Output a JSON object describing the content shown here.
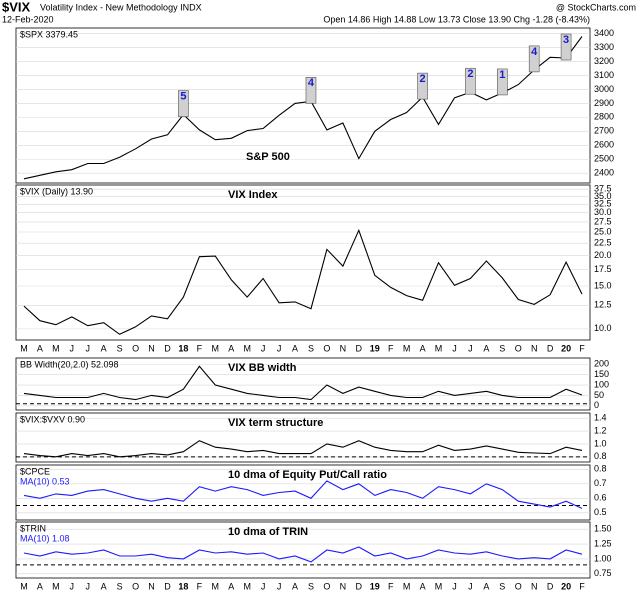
{
  "header": {
    "symbol": "$VIX",
    "name": "Volatility Index - New Methodology INDX",
    "date": "12-Feb-2020",
    "source": "@ StockCharts.com",
    "quote": "Open 14.86 High 14.88 Low 13.73 Close 13.90 Chg -1.28 (-8.43%)"
  },
  "categories": [
    "M",
    "A",
    "M",
    "J",
    "J",
    "A",
    "S",
    "O",
    "N",
    "D",
    "18",
    "F",
    "M",
    "A",
    "M",
    "J",
    "J",
    "A",
    "S",
    "O",
    "N",
    "D",
    "19",
    "F",
    "M",
    "A",
    "M",
    "J",
    "J",
    "A",
    "S",
    "O",
    "N",
    "D",
    "20",
    "F"
  ],
  "chart_data": [
    {
      "type": "line",
      "annotation": "S&P 500",
      "series": [
        {
          "name": "$SPX 3379.45",
          "color": "#000000",
          "values": [
            2360,
            2385,
            2410,
            2425,
            2470,
            2470,
            2515,
            2575,
            2645,
            2675,
            2820,
            2710,
            2640,
            2650,
            2705,
            2720,
            2815,
            2900,
            2915,
            2710,
            2760,
            2505,
            2700,
            2785,
            2835,
            2945,
            2750,
            2940,
            2980,
            2925,
            2975,
            3035,
            3140,
            3230,
            3225,
            3379.45
          ]
        }
      ],
      "peaks": [
        null,
        null,
        null,
        null,
        null,
        null,
        null,
        null,
        null,
        null,
        "5",
        null,
        null,
        null,
        null,
        null,
        null,
        null,
        "4",
        null,
        null,
        null,
        null,
        null,
        null,
        "2",
        null,
        null,
        "2",
        null,
        "1",
        null,
        "4",
        null,
        "3",
        null
      ],
      "ylim": [
        2330,
        3440
      ],
      "yticks": [
        2400,
        2500,
        2600,
        2700,
        2800,
        2900,
        3000,
        3100,
        3200,
        3300,
        3400
      ],
      "grid": true
    },
    {
      "type": "line",
      "annotation": "VIX Index",
      "log_scale": true,
      "show_x_axis": true,
      "series": [
        {
          "name": "$VIX (Daily) 13.90",
          "color": "#000000",
          "values": [
            12.4,
            10.8,
            10.4,
            11.2,
            10.3,
            10.6,
            9.5,
            10.2,
            11.3,
            11.0,
            13.5,
            19.8,
            19.9,
            15.9,
            13.5,
            16.1,
            12.8,
            12.9,
            12.1,
            21.2,
            18.1,
            25.4,
            16.6,
            14.8,
            13.7,
            13.1,
            18.7,
            15.1,
            16.1,
            19.0,
            16.2,
            13.2,
            12.6,
            13.8,
            18.8,
            13.9
          ]
        }
      ],
      "ylim": [
        9,
        39
      ],
      "yticks": [
        {
          "value": 10,
          "label": "10.0"
        },
        {
          "value": 12.5,
          "label": "12.5"
        },
        {
          "value": 15,
          "label": "15.0"
        },
        {
          "value": 17.5,
          "label": "17.5"
        },
        {
          "value": 20,
          "label": "20.0"
        },
        {
          "value": 22.5,
          "label": "22.5"
        },
        {
          "value": 25,
          "label": "25.0"
        },
        {
          "value": 27.5,
          "label": "27.5"
        },
        {
          "value": 30,
          "label": "30.0"
        },
        {
          "value": 32.5,
          "label": "32.5"
        },
        {
          "value": 35,
          "label": "35.0"
        },
        {
          "value": 37.5,
          "label": "37.5"
        }
      ],
      "grid": true
    },
    {
      "type": "line",
      "annotation": "VIX BB width",
      "series": [
        {
          "name": "BB Width(20,2.0) 52.098",
          "color": "#000000",
          "values": [
            60,
            50,
            40,
            40,
            40,
            60,
            40,
            30,
            50,
            40,
            80,
            190,
            100,
            80,
            60,
            50,
            40,
            40,
            30,
            100,
            60,
            90,
            70,
            50,
            40,
            40,
            70,
            50,
            60,
            70,
            50,
            40,
            40,
            40,
            80,
            52.098
          ]
        }
      ],
      "reference": 10,
      "ylim": [
        -20,
        230
      ],
      "yticks": [
        0,
        50,
        100,
        150,
        200
      ],
      "grid": true
    },
    {
      "type": "line",
      "annotation": "VIX term structure",
      "series": [
        {
          "name": "$VIX:$VXV 0.90",
          "color": "#000000",
          "values": [
            0.85,
            0.82,
            0.8,
            0.85,
            0.82,
            0.85,
            0.8,
            0.82,
            0.85,
            0.83,
            0.88,
            1.05,
            0.95,
            0.92,
            0.88,
            0.9,
            0.85,
            0.85,
            0.85,
            1.0,
            0.95,
            1.05,
            0.95,
            0.9,
            0.88,
            0.88,
            0.98,
            0.9,
            0.92,
            0.97,
            0.92,
            0.87,
            0.86,
            0.85,
            0.95,
            0.9
          ]
        }
      ],
      "reference": 0.8,
      "ylim": [
        0.72,
        1.48
      ],
      "yticks": [
        0.8,
        {
          "value": 1,
          "label": "1.0"
        },
        1.2,
        1.4
      ],
      "grid": true
    },
    {
      "type": "line",
      "annotation": "10 dma of Equity Put/Call ratio",
      "symbol": "$CPCE",
      "series": [
        {
          "name": "MA(10) 0.53",
          "color": "#1a1aff",
          "values": [
            0.62,
            0.6,
            0.63,
            0.62,
            0.65,
            0.66,
            0.63,
            0.6,
            0.58,
            0.6,
            0.58,
            0.68,
            0.65,
            0.68,
            0.66,
            0.62,
            0.64,
            0.65,
            0.6,
            0.72,
            0.66,
            0.7,
            0.62,
            0.66,
            0.64,
            0.6,
            0.68,
            0.66,
            0.63,
            0.7,
            0.66,
            0.58,
            0.56,
            0.54,
            0.58,
            0.53
          ]
        }
      ],
      "reference": 0.55,
      "ylim": [
        0.45,
        0.83
      ],
      "yticks": [
        0.5,
        0.6,
        0.7,
        0.8
      ],
      "grid": true
    },
    {
      "type": "line",
      "annotation": "10 dma of TRIN",
      "symbol": "$TRIN",
      "show_x_axis": true,
      "series": [
        {
          "name": "MA(10) 1.08",
          "color": "#1a1aff",
          "values": [
            1.1,
            1.05,
            1.12,
            1.08,
            1.1,
            1.15,
            1.05,
            1.05,
            1.08,
            1.02,
            1.0,
            1.15,
            1.1,
            1.12,
            1.08,
            1.1,
            1.0,
            1.05,
            0.95,
            1.15,
            1.1,
            1.2,
            1.05,
            1.1,
            1.0,
            1.05,
            1.15,
            1.1,
            1.08,
            1.12,
            1.05,
            1.0,
            1.02,
            1.0,
            1.15,
            1.08
          ]
        }
      ],
      "reference": 0.9,
      "ylim": [
        0.68,
        1.62
      ],
      "yticks": [
        0.75,
        {
          "value": 1,
          "label": "1.00"
        },
        1.25,
        {
          "value": 1.5,
          "label": "1.50"
        }
      ],
      "grid": true
    }
  ]
}
